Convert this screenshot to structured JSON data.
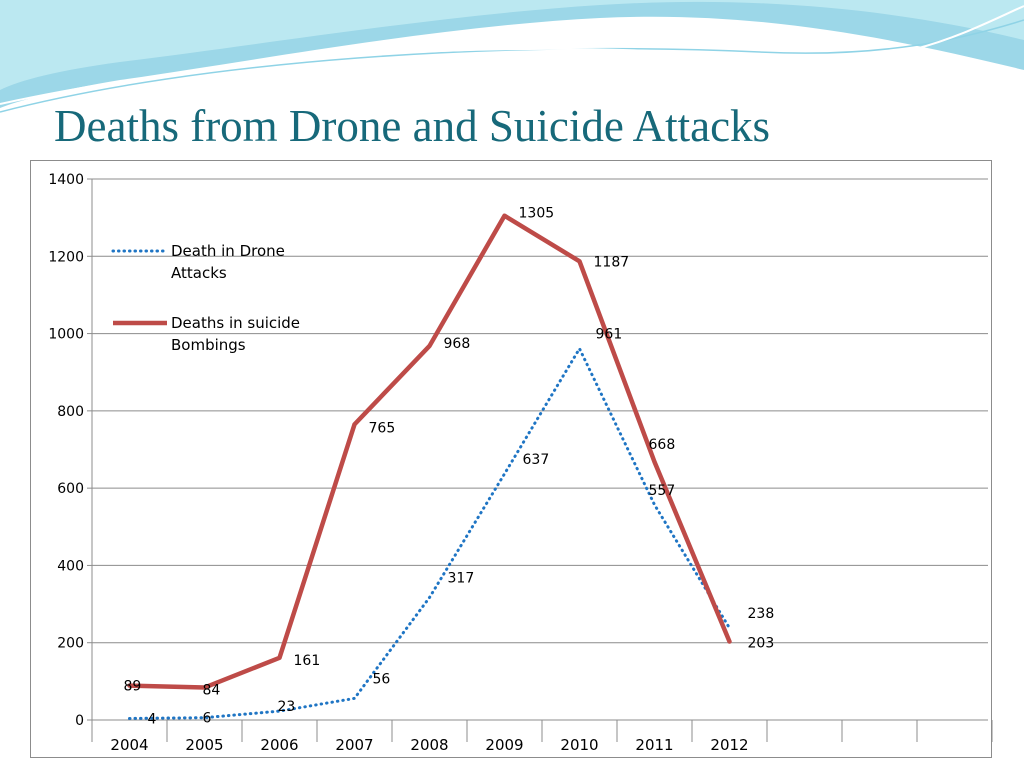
{
  "slide": {
    "title": "Deaths from Drone and Suicide Attacks",
    "colors": {
      "title": "#17697a",
      "wave_dark": "#4ab6d6",
      "wave_light": "#bfeaf2"
    }
  },
  "chart_data": {
    "type": "line",
    "title": "",
    "xlabel": "",
    "ylabel": "",
    "categories": [
      "2004",
      "2005",
      "2006",
      "2007",
      "2008",
      "2009",
      "2010",
      "2011",
      "2012"
    ],
    "ylim": [
      0,
      1400
    ],
    "yticks": [
      0,
      200,
      400,
      600,
      800,
      1000,
      1200,
      1400
    ],
    "grid": true,
    "legend_position": "top-left",
    "series": [
      {
        "name": "Death in Drone Attacks",
        "legend_lines": [
          "Death in Drone",
          "Attacks"
        ],
        "values": [
          4,
          6,
          23,
          56,
          317,
          637,
          961,
          557,
          238
        ],
        "color": "#1f75c4",
        "style": "dotted"
      },
      {
        "name": "Deaths in suicide Bombings",
        "legend_lines": [
          "Deaths in suicide",
          "Bombings"
        ],
        "values": [
          89,
          84,
          161,
          765,
          968,
          1305,
          1187,
          668,
          203
        ],
        "color": "#be4b48",
        "style": "solid"
      }
    ]
  }
}
